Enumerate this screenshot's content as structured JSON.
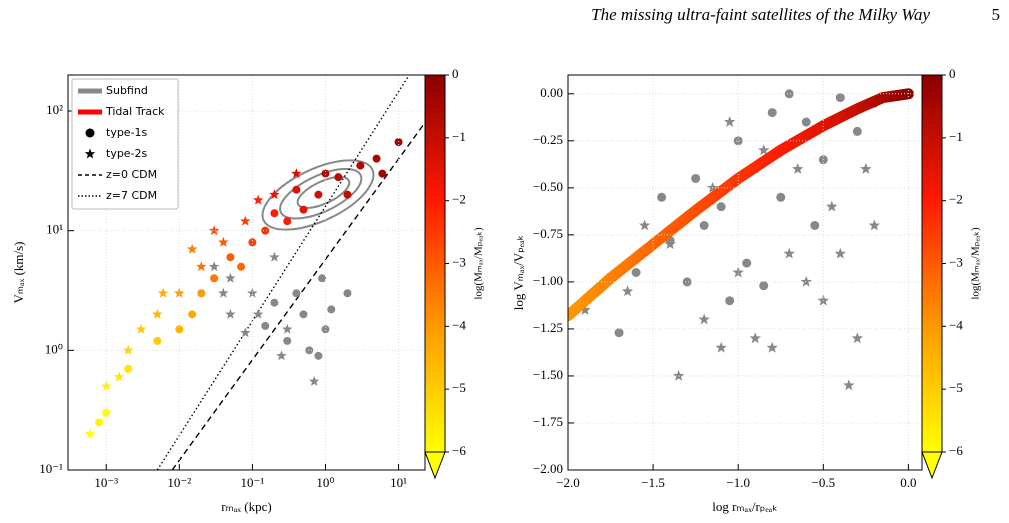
{
  "header": {
    "title": "The missing ultra-faint satellites of the Milky Way",
    "page": "5"
  },
  "chart_data": [
    {
      "type": "scatter",
      "xlabel": "rₘₐₓ (kpc)",
      "ylabel": "Vₘₐₓ (km/s)",
      "xlog": true,
      "ylog": true,
      "grid": true,
      "xlim": [
        0.0003,
        23
      ],
      "ylim": [
        0.1,
        200
      ],
      "xticks": [
        {
          "value": 0.001,
          "label": "10⁻³"
        },
        {
          "value": 0.01,
          "label": "10⁻²"
        },
        {
          "value": 0.1,
          "label": "10⁻¹"
        },
        {
          "value": 1,
          "label": "10⁰"
        },
        {
          "value": 10,
          "label": "10¹"
        }
      ],
      "yticks": [
        {
          "value": 0.1,
          "label": "10⁻¹"
        },
        {
          "value": 1,
          "label": "10⁰"
        },
        {
          "value": 10,
          "label": "10¹"
        },
        {
          "value": 100,
          "label": "10²"
        }
      ],
      "legend_loc": "upper left",
      "legend": [
        {
          "name": "Subfind",
          "color": "#888888",
          "style": "thick"
        },
        {
          "name": "Tidal Track",
          "color": "#ff0000",
          "style": "thick"
        },
        {
          "name": "type-1s",
          "marker": "circle"
        },
        {
          "name": "type-2s",
          "marker": "star"
        },
        {
          "name": "z=0 CDM",
          "style": "dashed"
        },
        {
          "name": "z=7 CDM",
          "style": "dotted"
        }
      ],
      "series": [
        {
          "marker": "circle",
          "x": [
            10,
            5,
            3,
            1.5,
            0.8,
            0.5,
            0.3,
            0.15,
            0.1,
            0.05,
            0.03,
            0.02,
            0.01,
            0.005,
            0.002,
            0.001,
            1,
            2,
            0.4,
            0.2,
            0.07,
            0.015,
            0.0008,
            6
          ],
          "values": [
            55,
            40,
            35,
            28,
            20,
            15,
            12,
            10,
            8,
            6,
            4,
            3,
            1.5,
            1.2,
            0.7,
            0.3,
            30,
            20,
            22,
            14,
            5,
            2,
            0.25,
            30
          ],
          "c": [
            -0.3,
            -0.5,
            -0.6,
            -0.8,
            -1.2,
            -1.5,
            -2,
            -2.3,
            -2.6,
            -3,
            -3.5,
            -4,
            -4.5,
            -5,
            -5.5,
            -6,
            -0.7,
            -0.9,
            -1.4,
            -2,
            -3.2,
            -4.3,
            -5.8,
            -0.4
          ]
        },
        {
          "marker": "star",
          "x": [
            0.2,
            0.08,
            0.04,
            0.02,
            0.01,
            0.005,
            0.002,
            0.001,
            0.0006,
            0.003,
            0.006,
            0.03,
            0.12,
            0.4,
            0.0015,
            0.015
          ],
          "values": [
            20,
            12,
            8,
            5,
            3,
            2,
            1,
            0.5,
            0.2,
            1.5,
            3,
            10,
            18,
            30,
            0.6,
            7
          ],
          "c": [
            -1.7,
            -2.5,
            -3,
            -3.4,
            -4,
            -4.6,
            -5.2,
            -5.7,
            -6,
            -5,
            -4.4,
            -2.8,
            -2.1,
            -1.3,
            -5.6,
            -3.6
          ]
        },
        {
          "marker": "circle",
          "color": "#888888",
          "x": [
            0.5,
            0.3,
            1,
            0.8,
            0.2,
            0.4,
            1.2,
            0.6,
            0.15,
            0.9,
            2
          ],
          "values": [
            2,
            1.2,
            1.5,
            0.9,
            2.5,
            3,
            2.2,
            1,
            1.6,
            4,
            3
          ]
        },
        {
          "marker": "star",
          "color": "#888888",
          "x": [
            0.1,
            0.05,
            0.3,
            0.7,
            0.05,
            0.08,
            0.03,
            0.2,
            0.04,
            0.25,
            0.12
          ],
          "values": [
            3,
            2,
            1.5,
            0.55,
            4,
            1.4,
            5,
            6,
            3,
            0.9,
            2
          ]
        }
      ],
      "lines": [
        {
          "style": "dashed",
          "x": [
            0.008,
            23
          ],
          "values": [
            0.1,
            80
          ]
        },
        {
          "style": "dotted",
          "x": [
            0.005,
            14
          ],
          "values": [
            0.1,
            200
          ]
        }
      ],
      "colorbar": {
        "label": "log(Mₘₐₓ/Mₚₑₐₖ)",
        "lim": [
          -6,
          0
        ],
        "cmap": [
          "#ffff00",
          "#ff9900",
          "#ff1a00",
          "#8b0000"
        ],
        "ticks": [
          {
            "value": 0,
            "label": "0"
          },
          {
            "value": -1,
            "label": "−1"
          },
          {
            "value": -2,
            "label": "−2"
          },
          {
            "value": -3,
            "label": "−3"
          },
          {
            "value": -4,
            "label": "−4"
          },
          {
            "value": -5,
            "label": "−5"
          },
          {
            "value": -6,
            "label": "−6"
          }
        ]
      }
    },
    {
      "type": "scatter",
      "xlabel": "log rₘₐₓ/rₚₑₐₖ",
      "ylabel": "log Vₘₐₓ/Vₚₑₐₖ",
      "xlog": false,
      "ylog": false,
      "grid": true,
      "xlim": [
        -2,
        0.08
      ],
      "ylim": [
        -2,
        0.1
      ],
      "xticks": [
        {
          "value": -2,
          "label": "−2.0"
        },
        {
          "value": -1.5,
          "label": "−1.5"
        },
        {
          "value": -1,
          "label": "−1.0"
        },
        {
          "value": -0.5,
          "label": "−0.5"
        },
        {
          "value": 0,
          "label": "0.0"
        }
      ],
      "yticks": [
        {
          "value": -2,
          "label": "−2.00"
        },
        {
          "value": -1.75,
          "label": "−1.75"
        },
        {
          "value": -1.5,
          "label": "−1.50"
        },
        {
          "value": -1.25,
          "label": "−1.25"
        },
        {
          "value": -1,
          "label": "−1.00"
        },
        {
          "value": -0.75,
          "label": "−0.75"
        },
        {
          "value": -0.5,
          "label": "−0.50"
        },
        {
          "value": -0.25,
          "label": "−0.25"
        },
        {
          "value": 0,
          "label": "0.00"
        }
      ],
      "series": [
        {
          "marker": "circle",
          "color": "#888888",
          "x": [
            -1.7,
            -1.6,
            -1.4,
            -1.2,
            -1,
            -0.9,
            -0.8,
            -0.6,
            -0.4,
            -0.5,
            -0.3,
            -1.1,
            -0.95,
            -1.25,
            -0.75,
            -0.55,
            -1.3,
            -1.05,
            -0.85,
            -0.2,
            -0.7,
            -1.45
          ],
          "values": [
            -1.27,
            -0.95,
            -0.78,
            -0.7,
            -0.25,
            -0.4,
            -0.1,
            -0.15,
            -0.02,
            -0.35,
            -0.2,
            -0.6,
            -0.9,
            -0.45,
            -0.55,
            -0.7,
            -1,
            -1.1,
            -1.02,
            -0.05,
            0,
            -0.55
          ]
        },
        {
          "marker": "star",
          "color": "#888888",
          "x": [
            -1.9,
            -1.75,
            -1.55,
            -1.35,
            -1.2,
            -1.1,
            -1,
            -0.9,
            -0.8,
            -0.7,
            -0.6,
            -0.5,
            -0.4,
            -0.35,
            -0.3,
            -0.2,
            -0.85,
            -1.05,
            -1.15,
            -0.65,
            -0.45,
            -1.4,
            -0.25,
            -1.65
          ],
          "values": [
            -1.15,
            -0.98,
            -0.7,
            -1.5,
            -1.2,
            -1.35,
            -0.95,
            -1.3,
            -1.35,
            -0.85,
            -1,
            -1.1,
            -0.85,
            -1.55,
            -1.3,
            -0.7,
            -0.3,
            -0.15,
            -0.5,
            -0.4,
            -0.6,
            -0.8,
            -0.4,
            -1.05
          ]
        }
      ],
      "track": {
        "x": [
          -2,
          -1.75,
          -1.5,
          -1.25,
          -1,
          -0.75,
          -0.5,
          -0.3,
          -0.15,
          0
        ],
        "values": [
          -1.18,
          -0.98,
          -0.8,
          -0.62,
          -0.45,
          -0.3,
          -0.17,
          -0.08,
          -0.02,
          0
        ],
        "c": [
          -4,
          -3.6,
          -3.2,
          -2.8,
          -2.4,
          -2,
          -1.5,
          -1,
          -0.5,
          0
        ]
      },
      "colorbar": {
        "label": "log(Mₘₐₓ/Mₚₑₐₖ)",
        "lim": [
          -6,
          0
        ],
        "cmap": [
          "#ffff00",
          "#ff9900",
          "#ff1a00",
          "#8b0000"
        ],
        "ticks": [
          {
            "value": 0,
            "label": "0"
          },
          {
            "value": -1,
            "label": "−1"
          },
          {
            "value": -2,
            "label": "−2"
          },
          {
            "value": -3,
            "label": "−3"
          },
          {
            "value": -4,
            "label": "−4"
          },
          {
            "value": -5,
            "label": "−5"
          },
          {
            "value": -6,
            "label": "−6"
          }
        ]
      }
    }
  ]
}
